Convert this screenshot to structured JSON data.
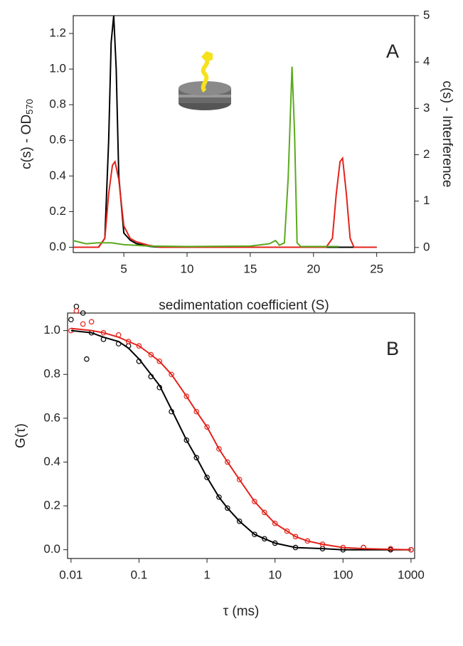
{
  "chart_data": [
    {
      "type": "line",
      "panel_label": "A",
      "xlabel": "sedimentation coefficient (S)",
      "ylabel": "c(s) - OD",
      "ylabel_sub": "570",
      "y2label": "c(s) - Interference",
      "xlim": [
        1,
        28
      ],
      "xticks": [
        5,
        10,
        15,
        20,
        25
      ],
      "ylim": [
        -0.03,
        1.3
      ],
      "yticks": [
        {
          "value": 0,
          "label": "0.0"
        },
        {
          "value": 0.2,
          "label": "0.2"
        },
        {
          "value": 0.4,
          "label": "0.4"
        },
        {
          "value": 0.6,
          "label": "0.6"
        },
        {
          "value": 0.8,
          "label": "0.8"
        },
        {
          "value": 1,
          "label": "1.0"
        },
        {
          "value": 1.2,
          "label": "1.2"
        }
      ],
      "y2lim": [
        -0.11,
        5
      ],
      "y2ticks": [
        0,
        1,
        2,
        3,
        4,
        5
      ],
      "series": [
        {
          "color": "#000000",
          "x": [
            1,
            3,
            3.5,
            3.8,
            4.0,
            4.2,
            4.4,
            4.6,
            5.0,
            5.5,
            6,
            7,
            8,
            10,
            25
          ],
          "values": [
            0,
            0,
            0.05,
            0.6,
            1.15,
            1.3,
            1.0,
            0.4,
            0.08,
            0.04,
            0.02,
            0.005,
            0,
            0,
            0
          ]
        },
        {
          "color": "#e3231b",
          "x": [
            1,
            3,
            3.5,
            3.8,
            4.1,
            4.3,
            4.6,
            5,
            5.5,
            6,
            7,
            8,
            20,
            21,
            21.5,
            21.8,
            22.1,
            22.3,
            22.6,
            22.9,
            23.2,
            25
          ],
          "values": [
            0,
            0,
            0.05,
            0.3,
            0.46,
            0.48,
            0.38,
            0.12,
            0.05,
            0.03,
            0.01,
            0,
            0,
            0,
            0.05,
            0.3,
            0.48,
            0.5,
            0.3,
            0.05,
            0,
            0
          ]
        },
        {
          "color": "#5aaa1e",
          "axis": "y2",
          "x": [
            1,
            2,
            3,
            4,
            5,
            7,
            10,
            15,
            16.5,
            17,
            17.3,
            17.7,
            18,
            18.3,
            18.5,
            18.7,
            19,
            22
          ],
          "values": [
            0.15,
            0.08,
            0.1,
            0.1,
            0.06,
            0.03,
            0.02,
            0.03,
            0.08,
            0.15,
            0.05,
            0.1,
            1.5,
            3.9,
            2.5,
            0.1,
            0.02,
            0.02
          ]
        }
      ]
    },
    {
      "type": "scatter",
      "panel_label": "B",
      "xlabel": "τ (ms)",
      "ylabel": "G(τ)",
      "xscale": "log",
      "xlim": [
        0.0089,
        1130
      ],
      "xticks": [
        0.01,
        0.1,
        1,
        10,
        100,
        1000
      ],
      "ylim": [
        -0.04,
        1.08
      ],
      "yticks": [
        {
          "value": 0,
          "label": "0.0"
        },
        {
          "value": 0.2,
          "label": "0.2"
        },
        {
          "value": 0.4,
          "label": "0.4"
        },
        {
          "value": 0.6,
          "label": "0.6"
        },
        {
          "value": 0.8,
          "label": "0.8"
        },
        {
          "value": 1,
          "label": "1.0"
        }
      ],
      "series": [
        {
          "color": "#000000",
          "x": [
            0.01,
            0.012,
            0.015,
            0.017,
            0.02,
            0.03,
            0.05,
            0.07,
            0.1,
            0.15,
            0.2,
            0.3,
            0.5,
            0.7,
            1,
            1.5,
            2,
            3,
            5,
            7,
            10,
            20,
            50,
            100,
            200,
            500,
            1000
          ],
          "values": [
            1.05,
            1.11,
            1.08,
            0.87,
            0.99,
            0.96,
            0.94,
            0.93,
            0.86,
            0.79,
            0.74,
            0.63,
            0.5,
            0.42,
            0.33,
            0.24,
            0.19,
            0.13,
            0.07,
            0.05,
            0.03,
            0.01,
            0.005,
            0,
            0.01,
            0,
            0
          ]
        },
        {
          "color": "#e3231b",
          "x": [
            0.01,
            0.012,
            0.015,
            0.02,
            0.03,
            0.05,
            0.07,
            0.1,
            0.15,
            0.2,
            0.3,
            0.5,
            0.7,
            1,
            1.5,
            2,
            3,
            5,
            7,
            10,
            15,
            20,
            30,
            50,
            100,
            200,
            500,
            1000
          ],
          "values": [
            1.0,
            1.09,
            1.03,
            1.04,
            0.99,
            0.98,
            0.95,
            0.93,
            0.89,
            0.86,
            0.8,
            0.7,
            0.63,
            0.56,
            0.46,
            0.4,
            0.32,
            0.22,
            0.17,
            0.12,
            0.085,
            0.06,
            0.04,
            0.025,
            0.01,
            0.01,
            0.005,
            0
          ]
        },
        {
          "type": "line",
          "color": "#000000",
          "x": [
            0.01,
            0.02,
            0.03,
            0.05,
            0.07,
            0.1,
            0.15,
            0.2,
            0.3,
            0.5,
            0.7,
            1,
            1.5,
            2,
            3,
            5,
            7,
            10,
            20,
            50,
            100,
            1000
          ],
          "values": [
            1.0,
            0.99,
            0.97,
            0.95,
            0.92,
            0.87,
            0.8,
            0.75,
            0.64,
            0.5,
            0.42,
            0.33,
            0.24,
            0.19,
            0.13,
            0.07,
            0.05,
            0.03,
            0.01,
            0.005,
            0,
            0
          ]
        },
        {
          "type": "line",
          "color": "#e3231b",
          "x": [
            0.01,
            0.02,
            0.03,
            0.05,
            0.07,
            0.1,
            0.15,
            0.2,
            0.3,
            0.5,
            0.7,
            1,
            1.5,
            2,
            3,
            5,
            7,
            10,
            15,
            20,
            30,
            50,
            100,
            200,
            1000
          ],
          "values": [
            1.01,
            1.0,
            0.99,
            0.97,
            0.95,
            0.93,
            0.89,
            0.86,
            0.8,
            0.7,
            0.63,
            0.56,
            0.46,
            0.4,
            0.32,
            0.22,
            0.17,
            0.12,
            0.085,
            0.06,
            0.04,
            0.025,
            0.01,
            0.005,
            0
          ]
        }
      ]
    }
  ]
}
